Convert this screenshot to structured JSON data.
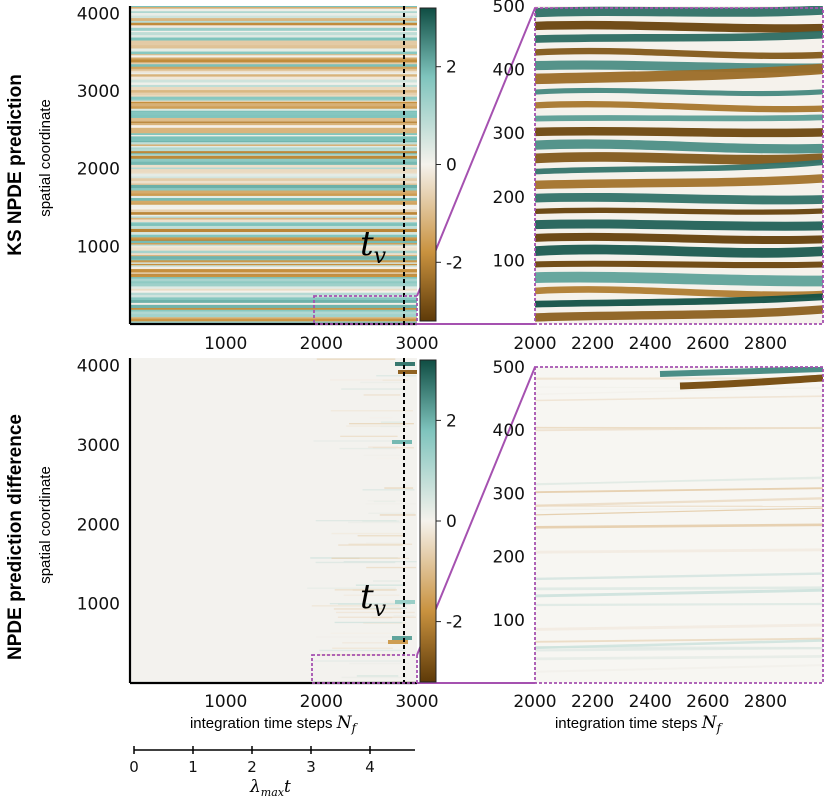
{
  "row_titles": [
    "KS NPDE prediction",
    "NPDE prediction difference"
  ],
  "ylabel": "spatial coordinate",
  "xlabel_prefix": "integration time steps",
  "xlabel_symbol": "N",
  "xlabel_subscript": "f",
  "tv_symbol": "t",
  "tv_subscript": "v",
  "lyapunov_symbol": "λ",
  "lyapunov_subscript": "max",
  "lyapunov_suffix": "t",
  "colors": {
    "negative": "#5e3a08",
    "negative_mid": "#c9923f",
    "zero": "#f5f2ec",
    "positive_mid": "#7fc4bd",
    "positive": "#0f4d43",
    "zoom_box": "#a551b0"
  },
  "chart_data": [
    {
      "type": "heatmap",
      "panel": "KS NPDE prediction, full domain",
      "ylabel": "spatial coordinate",
      "xlim": [
        0,
        3000
      ],
      "ylim": [
        0,
        4096
      ],
      "xticks": [
        "1000",
        "2000",
        "3000"
      ],
      "yticks": [
        "1000",
        "2000",
        "3000",
        "4000"
      ],
      "tv_x": 2870,
      "zoom_box": {
        "x": [
          2000,
          3000
        ],
        "y": [
          0,
          500
        ]
      }
    },
    {
      "type": "heatmap",
      "panel": "KS NPDE prediction, zoom",
      "xlim": [
        2000,
        3000
      ],
      "ylim": [
        0,
        500
      ],
      "xticks": [
        "2000",
        "2200",
        "2400",
        "2600",
        "2800"
      ],
      "yticks": [
        "100",
        "200",
        "300",
        "400",
        "500"
      ]
    },
    {
      "type": "heatmap",
      "panel": "NPDE prediction difference, full domain",
      "ylabel": "spatial coordinate",
      "xlabel": "integration time steps N_f",
      "xlim": [
        0,
        3000
      ],
      "ylim": [
        0,
        4096
      ],
      "xticks": [
        "1000",
        "2000",
        "3000"
      ],
      "yticks": [
        "1000",
        "2000",
        "3000",
        "4000"
      ],
      "tv_x": 2870,
      "zoom_box": {
        "x": [
          2000,
          3000
        ],
        "y": [
          0,
          500
        ]
      }
    },
    {
      "type": "heatmap",
      "panel": "NPDE prediction difference, zoom",
      "xlabel": "integration time steps N_f",
      "xlim": [
        2000,
        3000
      ],
      "ylim": [
        0,
        500
      ],
      "xticks": [
        "2000",
        "2200",
        "2400",
        "2600",
        "2800"
      ],
      "yticks": [
        "100",
        "200",
        "300",
        "400",
        "500"
      ]
    }
  ],
  "colorbar": {
    "range": [
      -3.2,
      3.2
    ],
    "ticks": [
      "2",
      "0",
      "-2"
    ]
  },
  "lyapunov_axis": {
    "ticks": [
      "0",
      "1",
      "2",
      "3",
      "4"
    ]
  }
}
